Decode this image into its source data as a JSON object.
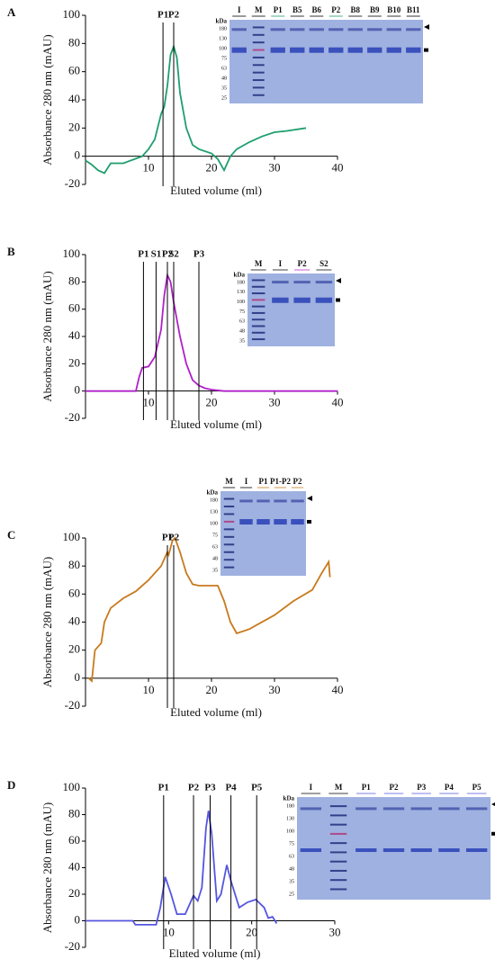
{
  "chart_data": [
    {
      "type": "line",
      "panel": "A",
      "ylabel": "Absorbance 280 nm (mAU)",
      "xlabel": "Eluted volume (ml)",
      "color": "#1f9e6e",
      "x": [
        0,
        1,
        2,
        3,
        4,
        6,
        9,
        10,
        11,
        12,
        12.5,
        13,
        13.5,
        14,
        14.5,
        15,
        16,
        17,
        18,
        20,
        21,
        22,
        23,
        24,
        26,
        28,
        30,
        32,
        35
      ],
      "values": [
        -3,
        -6,
        -10,
        -12,
        -5,
        -5,
        0,
        5,
        12,
        30,
        35,
        50,
        72,
        78,
        70,
        45,
        20,
        8,
        5,
        2,
        -2,
        -10,
        0,
        5,
        10,
        14,
        17,
        18,
        20
      ],
      "xlim": [
        0,
        40
      ],
      "ylim": [
        -20,
        100
      ],
      "xticks": [
        10,
        20,
        30,
        40
      ],
      "yticks": [
        -20,
        0,
        20,
        40,
        60,
        80,
        100
      ],
      "annotations": [
        {
          "text": "P1",
          "x": 12.3
        },
        {
          "text": "P2",
          "x": 14
        }
      ],
      "gel": {
        "unit": "kDa",
        "lanes": [
          "I",
          "M",
          "P1",
          "B5",
          "B6",
          "P2",
          "B8",
          "B9",
          "B10",
          "B11"
        ],
        "kda": [
          180,
          130,
          100,
          75,
          63,
          48,
          35,
          25
        ]
      }
    },
    {
      "type": "line",
      "panel": "B",
      "ylabel": "Absorbance 280 nm (mAU)",
      "xlabel": "Eluted volume (ml)",
      "color": "#b020c8",
      "x": [
        0,
        8,
        8.5,
        9,
        10,
        11,
        12,
        12.5,
        13,
        13.5,
        14,
        15,
        16,
        17,
        18,
        19,
        20,
        22,
        40
      ],
      "values": [
        0,
        0,
        10,
        17,
        18,
        25,
        45,
        70,
        85,
        80,
        65,
        40,
        20,
        8,
        4,
        2,
        1,
        0,
        0
      ],
      "xlim": [
        0,
        40
      ],
      "ylim": [
        -20,
        100
      ],
      "xticks": [
        10,
        20,
        30,
        40
      ],
      "yticks": [
        -20,
        0,
        20,
        40,
        60,
        80,
        100
      ],
      "annotations": [
        {
          "text": "P1",
          "x": 9.2
        },
        {
          "text": "S1",
          "x": 11.2
        },
        {
          "text": "P2",
          "x": 13
        },
        {
          "text": "S2",
          "x": 14
        },
        {
          "text": "P3",
          "x": 18
        }
      ],
      "gel": {
        "unit": "kDa",
        "lanes": [
          "M",
          "I",
          "P2",
          "S2"
        ],
        "kda": [
          180,
          130,
          100,
          75,
          63,
          48,
          35
        ]
      }
    },
    {
      "type": "line",
      "panel": "C",
      "ylabel": "Absorbance 280 nm (mAU)",
      "xlabel": "Eluted volume (ml)",
      "color": "#c87a1e",
      "x": [
        0.5,
        1,
        1.5,
        2.5,
        3,
        4,
        6,
        8,
        10,
        12,
        13,
        13.2,
        13.8,
        14.2,
        15,
        16,
        17,
        18,
        21,
        22,
        23,
        24,
        26,
        30,
        33,
        36,
        36.5,
        37.5,
        38.6,
        38.8
      ],
      "values": [
        0,
        -2,
        20,
        25,
        40,
        50,
        57,
        62,
        70,
        80,
        90,
        88,
        98,
        100,
        90,
        75,
        67,
        66,
        66,
        55,
        40,
        32,
        35,
        45,
        55,
        63,
        67,
        75,
        83,
        72
      ],
      "xlim": [
        0,
        40
      ],
      "ylim": [
        -20,
        100
      ],
      "xticks": [
        10,
        20,
        30,
        40
      ],
      "yticks": [
        -20,
        0,
        20,
        40,
        60,
        80,
        100
      ],
      "annotations": [
        {
          "text": "P1",
          "x": 13
        },
        {
          "text": "P2",
          "x": 14
        }
      ],
      "gel": {
        "unit": "kDa",
        "lanes": [
          "M",
          "I",
          "P1",
          "P1-P2",
          "P2"
        ],
        "kda": [
          180,
          130,
          100,
          75,
          63,
          48,
          35
        ]
      }
    },
    {
      "type": "line",
      "panel": "D",
      "ylabel": "Absorbance 280 nm (mAU)",
      "xlabel": "Eluted volume (ml)",
      "color": "#5555e0",
      "x": [
        0,
        5.7,
        6,
        8.5,
        9,
        9.6,
        10.3,
        11,
        12,
        12.5,
        13,
        13.5,
        14,
        14.5,
        14.8,
        15.2,
        15.8,
        16.3,
        17,
        17.5,
        18.5,
        19.5,
        20.5,
        21.5,
        22,
        22.5,
        23
      ],
      "values": [
        0,
        0,
        -3,
        -3,
        10,
        33,
        20,
        5,
        5,
        12,
        19,
        15,
        25,
        70,
        83,
        65,
        15,
        20,
        42,
        30,
        10,
        14,
        16,
        10,
        2,
        3,
        -2
      ],
      "xlim": [
        0,
        30
      ],
      "ylim": [
        -20,
        100
      ],
      "xticks": [
        10,
        20,
        30
      ],
      "yticks": [
        -20,
        0,
        20,
        40,
        60,
        80,
        100
      ],
      "annotations": [
        {
          "text": "P1",
          "x": 9.4
        },
        {
          "text": "P2",
          "x": 13
        },
        {
          "text": "P3",
          "x": 15
        },
        {
          "text": "P4",
          "x": 17.5
        },
        {
          "text": "P5",
          "x": 20.6
        }
      ],
      "gel": {
        "unit": "kDa",
        "lanes": [
          "I",
          "M",
          "P1",
          "P2",
          "P3",
          "P4",
          "P5"
        ],
        "kda": [
          180,
          130,
          100,
          75,
          63,
          48,
          35,
          25
        ]
      }
    }
  ]
}
